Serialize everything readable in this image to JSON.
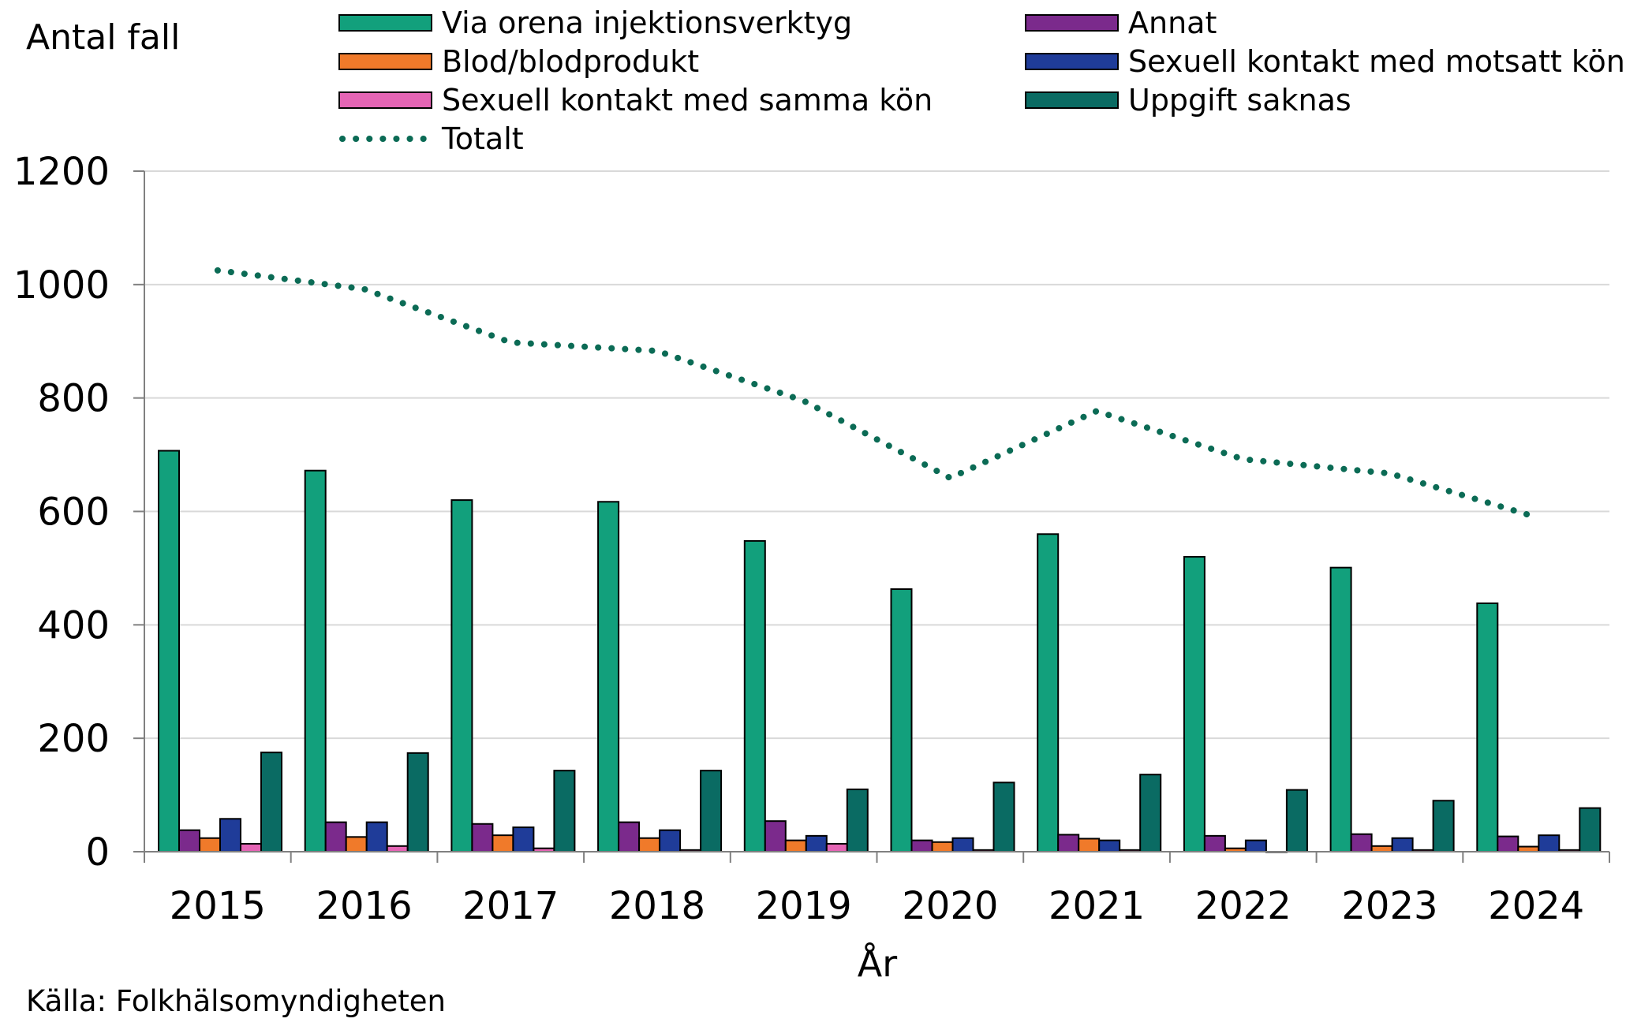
{
  "chart_data": {
    "type": "bar",
    "title": "",
    "ylabel": "Antal fall",
    "xlabel": "År",
    "source": "Källa: Folkhälsomyndigheten",
    "ylim": [
      0,
      1200
    ],
    "yticks": [
      0,
      200,
      400,
      600,
      800,
      1000,
      1200
    ],
    "grid": true,
    "legend_position": "top",
    "categories": [
      "2015",
      "2016",
      "2017",
      "2018",
      "2019",
      "2020",
      "2021",
      "2022",
      "2023",
      "2024"
    ],
    "series": [
      {
        "name": "Via orena injektionsverktyg",
        "color": "#12a07c",
        "values": [
          707,
          672,
          620,
          617,
          548,
          463,
          560,
          520,
          501,
          438
        ]
      },
      {
        "name": "Annat",
        "color": "#7b2a8c",
        "values": [
          38,
          52,
          49,
          52,
          54,
          20,
          30,
          28,
          31,
          27
        ]
      },
      {
        "name": "Blod/blodprodukt",
        "color": "#f07a2a",
        "values": [
          24,
          26,
          29,
          24,
          20,
          17,
          23,
          6,
          10,
          9
        ]
      },
      {
        "name": "Sexuell kontakt med motsatt kön",
        "color": "#1f3c99",
        "values": [
          58,
          52,
          43,
          38,
          28,
          24,
          20,
          20,
          24,
          29
        ]
      },
      {
        "name": "Sexuell kontakt med samma kön",
        "color": "#e565b5",
        "values": [
          14,
          10,
          6,
          3,
          14,
          3,
          3,
          0,
          3,
          3
        ]
      },
      {
        "name": "Uppgift saknas",
        "color": "#0a6b63",
        "values": [
          175,
          174,
          143,
          143,
          110,
          122,
          136,
          109,
          90,
          77
        ]
      }
    ],
    "line": {
      "name": "Totalt",
      "color": "#0b6b55",
      "style": "dotted",
      "values": [
        1025,
        992,
        898,
        883,
        795,
        659,
        777,
        692,
        667,
        590
      ]
    },
    "legend_order": [
      "Via orena injektionsverktyg",
      "Annat",
      "Blod/blodprodukt",
      "Sexuell kontakt med motsatt kön",
      "Sexuell kontakt med samma kön",
      "Uppgift saknas",
      "Totalt"
    ]
  }
}
